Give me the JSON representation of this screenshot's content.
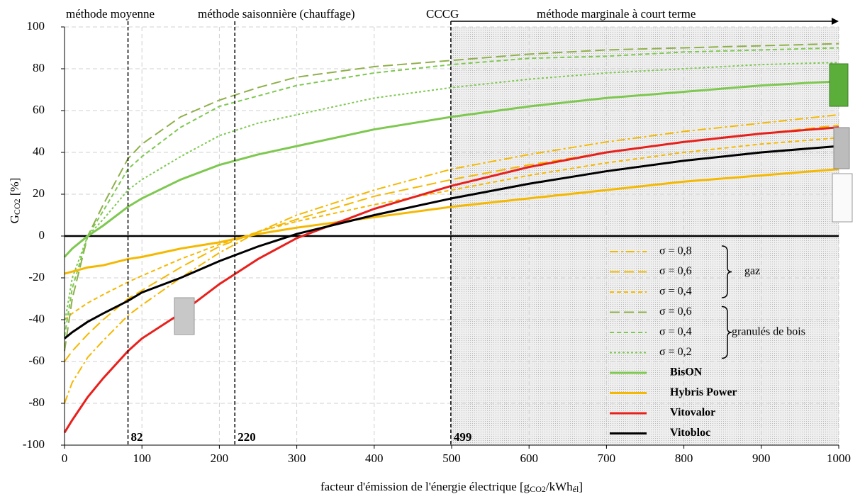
{
  "chart_data": {
    "type": "line",
    "x_label": [
      "facteur d'émission de l'énergie électrique [g",
      "CO2",
      "/kWh",
      "él",
      "]"
    ],
    "y_label": [
      "G",
      "CO2",
      " [%]"
    ],
    "annotations": [
      "méthode moyenne",
      "méthode saisonnière (chauffage)",
      "CCCG",
      "méthode marginale à court terme"
    ],
    "vlines": [
      82,
      220,
      499
    ],
    "group_labels": [
      "gaz",
      "granulés de bois"
    ],
    "x": [
      0,
      10,
      30,
      50,
      82,
      100,
      150,
      200,
      250,
      300,
      400,
      500,
      600,
      700,
      800,
      900,
      1000
    ],
    "xlim": [
      0,
      1000
    ],
    "xticks": [
      0,
      100,
      200,
      300,
      400,
      500,
      600,
      700,
      800,
      900,
      1000
    ],
    "ylim": [
      -100,
      100
    ],
    "yticks": [
      -100,
      -80,
      -60,
      -40,
      -20,
      0,
      20,
      40,
      60,
      80,
      100
    ],
    "grid": true,
    "series": [
      {
        "name": "σ = 0,8",
        "color": "#f5b800",
        "dash": "dashdot",
        "values": [
          -80,
          -70,
          -58,
          -50,
          -38,
          -33,
          -20,
          -8,
          2,
          10,
          22,
          32,
          39,
          45,
          50,
          54,
          58
        ]
      },
      {
        "name": "σ = 0,6",
        "color": "#f5b800",
        "dash": "long",
        "values": [
          -60,
          -55,
          -47,
          -40,
          -30,
          -26,
          -15,
          -5,
          2,
          8,
          19,
          27,
          34,
          40,
          45,
          49,
          53
        ]
      },
      {
        "name": "σ = 0,4",
        "color": "#f5b800",
        "dash": "short",
        "values": [
          -40,
          -37,
          -32,
          -28,
          -22,
          -19,
          -11,
          -4,
          2,
          7,
          15,
          22,
          29,
          35,
          40,
          44,
          47
        ]
      },
      {
        "name": "σ = 0,6",
        "color": "#8fb04a",
        "dash": "long",
        "values": [
          -55,
          -30,
          0,
          15,
          37,
          44,
          57,
          65,
          71,
          76,
          81,
          84,
          87,
          89,
          90,
          91,
          92
        ]
      },
      {
        "name": "σ = 0,4",
        "color": "#7ec850",
        "dash": "short",
        "values": [
          -48,
          -25,
          0,
          12,
          32,
          38,
          52,
          62,
          67,
          72,
          78,
          82,
          85,
          86,
          88,
          89,
          90
        ]
      },
      {
        "name": "σ = 0,2",
        "color": "#7ec850",
        "dash": "dot",
        "values": [
          -42,
          -20,
          0,
          8,
          22,
          27,
          38,
          48,
          54,
          58,
          66,
          71,
          75,
          78,
          80,
          82,
          83
        ]
      },
      {
        "name": "BisON",
        "color": "#7ec850",
        "dash": "solid",
        "values": [
          -10,
          -6,
          0,
          5,
          14,
          18,
          27,
          34,
          39,
          43,
          51,
          57,
          62,
          66,
          69,
          72,
          74
        ]
      },
      {
        "name": "Hybris Power",
        "color": "#f5b800",
        "dash": "solid",
        "values": [
          -18,
          -17,
          -15,
          -14,
          -11,
          -10,
          -6,
          -3,
          1,
          4,
          9,
          14,
          18,
          22,
          26,
          29,
          32
        ]
      },
      {
        "name": "Vitovalor",
        "color": "#e8201c",
        "dash": "solid",
        "values": [
          -94,
          -88,
          -77,
          -68,
          -55,
          -49,
          -37,
          -23,
          -11,
          -1,
          13,
          24,
          33,
          40,
          45,
          49,
          52
        ]
      },
      {
        "name": "Vitobloc",
        "color": "#000000",
        "dash": "solid",
        "values": [
          -49,
          -46,
          -41,
          -37,
          -31,
          -27,
          -20,
          -12,
          -5,
          1,
          10,
          18,
          25,
          31,
          36,
          40,
          43
        ]
      }
    ]
  }
}
